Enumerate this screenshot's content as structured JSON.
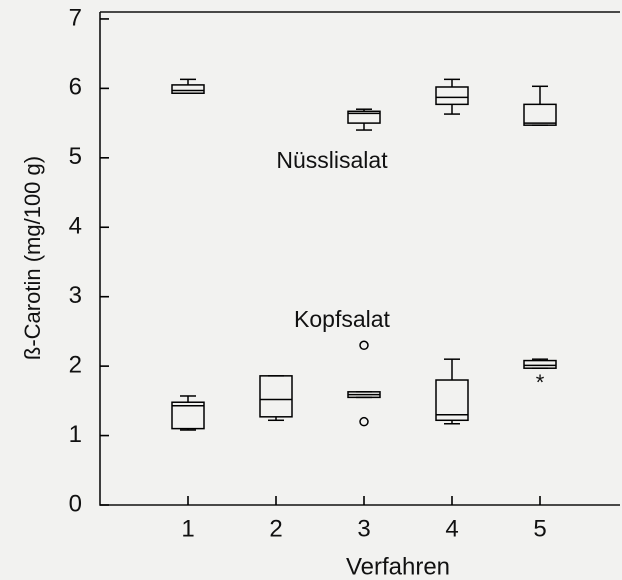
{
  "chart_data": {
    "type": "box",
    "categories": [
      "1",
      "2",
      "3",
      "4",
      "5"
    ],
    "xlabel": "Verfahren",
    "ylabel": "ß-Carotin (mg/100 g)",
    "ylim": [
      0,
      7.1
    ],
    "yticks": [
      0,
      1,
      2,
      3,
      4,
      5,
      6,
      7
    ],
    "color": "#000000",
    "series": [
      {
        "name": "Nüsslisalat",
        "values": [
          {
            "min": 5.93,
            "q1": 5.93,
            "median": 5.97,
            "q3": 6.05,
            "max": 6.13
          },
          null,
          {
            "min": 5.4,
            "q1": 5.5,
            "median": 5.64,
            "q3": 5.67,
            "max": 5.7
          },
          {
            "min": 5.63,
            "q1": 5.77,
            "median": 5.87,
            "q3": 6.02,
            "max": 6.13
          },
          {
            "min": 5.47,
            "q1": 5.47,
            "median": 5.5,
            "q3": 5.77,
            "max": 6.03
          }
        ],
        "outliers": [
          [],
          [],
          [],
          [],
          []
        ],
        "extreme_outliers": [
          [],
          [],
          [],
          [],
          []
        ]
      },
      {
        "name": "Kopfsalat",
        "values": [
          {
            "min": 1.08,
            "q1": 1.1,
            "median": 1.43,
            "q3": 1.48,
            "max": 1.57
          },
          {
            "min": 1.22,
            "q1": 1.27,
            "median": 1.52,
            "q3": 1.86,
            "max": 1.86
          },
          {
            "min": 1.55,
            "q1": 1.55,
            "median": 1.59,
            "q3": 1.63,
            "max": 1.63
          },
          {
            "min": 1.17,
            "q1": 1.22,
            "median": 1.3,
            "q3": 1.8,
            "max": 2.1
          },
          {
            "min": 1.97,
            "q1": 1.97,
            "median": 2.01,
            "q3": 2.08,
            "max": 2.1
          }
        ],
        "outliers": [
          [],
          [],
          [
            2.3,
            1.2
          ],
          [],
          []
        ],
        "extreme_outliers": [
          [],
          [],
          [],
          [],
          [
            1.8
          ]
        ]
      }
    ]
  }
}
